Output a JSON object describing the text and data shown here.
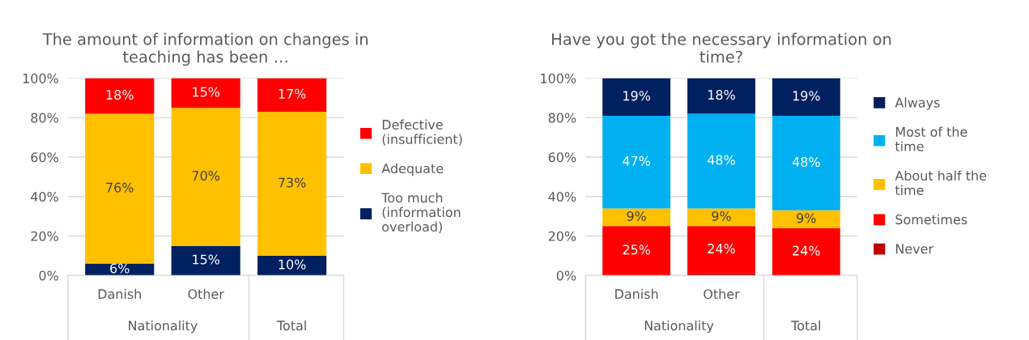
{
  "chart_data": [
    {
      "type": "bar",
      "stacked": true,
      "title": "The amount of information on changes in\nteaching has been …",
      "categories": [
        "Danish",
        "Other",
        null
      ],
      "series": [
        {
          "name": "Too much\n(information\noverload)",
          "color": "#002060",
          "values": [
            6,
            15,
            10
          ],
          "value_labels": [
            "6%",
            "15%",
            "10%"
          ]
        },
        {
          "name": "Adequate",
          "color": "#ffc000",
          "values": [
            76,
            70,
            73
          ],
          "value_labels": [
            "76%",
            "70%",
            "73%"
          ]
        },
        {
          "name": "Defective\n(insufficient)",
          "color": "#ff0000",
          "values": [
            18,
            15,
            17
          ],
          "value_labels": [
            "18%",
            "15%",
            "17%"
          ]
        }
      ],
      "ylim": [
        0,
        100
      ],
      "yticks": [
        {
          "value": 0,
          "label": "0%"
        },
        {
          "value": 20,
          "label": "20%"
        },
        {
          "value": 40,
          "label": "40%"
        },
        {
          "value": 60,
          "label": "60%"
        },
        {
          "value": 80,
          "label": "80%"
        },
        {
          "value": 100,
          "label": "100%"
        }
      ],
      "grid": "y",
      "legend": "right",
      "annotations": [
        "Nationality",
        "Total"
      ]
    },
    {
      "type": "bar",
      "stacked": true,
      "title": "Have you got the necessary information on\ntime?",
      "categories": [
        "Danish",
        "Other",
        null
      ],
      "series": [
        {
          "name": "Never",
          "color": "#c00000",
          "values": [
            0,
            1,
            0
          ],
          "value_labels": [
            null,
            null,
            null
          ]
        },
        {
          "name": "Sometimes",
          "color": "#ff0000",
          "values": [
            25,
            24,
            24
          ],
          "value_labels": [
            "25%",
            "24%",
            "24%"
          ]
        },
        {
          "name": "About half the\ntime",
          "color": "#ffc000",
          "values": [
            9,
            9,
            9
          ],
          "value_labels": [
            "9%",
            "9%",
            "9%"
          ]
        },
        {
          "name": "Most of the\ntime",
          "color": "#00b0f0",
          "values": [
            47,
            48,
            48
          ],
          "value_labels": [
            "47%",
            "48%",
            "48%"
          ]
        },
        {
          "name": "Always",
          "color": "#002060",
          "values": [
            19,
            18,
            19
          ],
          "value_labels": [
            "19%",
            "18%",
            "19%"
          ]
        }
      ],
      "ylim": [
        0,
        100
      ],
      "yticks": [
        {
          "value": 0,
          "label": "0%"
        },
        {
          "value": 20,
          "label": "20%"
        },
        {
          "value": 40,
          "label": "40%"
        },
        {
          "value": 60,
          "label": "60%"
        },
        {
          "value": 80,
          "label": "80%"
        },
        {
          "value": 100,
          "label": "100%"
        }
      ],
      "grid": "y",
      "legend": "right",
      "annotations": [
        "Nationality",
        "Total"
      ]
    }
  ]
}
